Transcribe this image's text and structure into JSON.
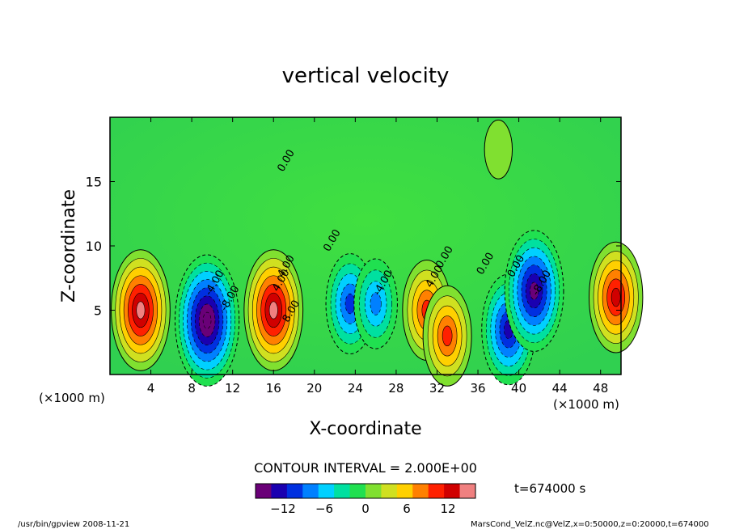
{
  "chart_data": {
    "type": "heatmap",
    "title": "vertical velocity",
    "xlabel": "X-coordinate",
    "ylabel": "Z-coordinate",
    "x_unit": "(×1000 m)",
    "y_unit": "(×1000 m)",
    "xlim": [
      0,
      50
    ],
    "ylim": [
      0,
      20
    ],
    "x_ticks": [
      4,
      8,
      12,
      16,
      20,
      24,
      28,
      32,
      36,
      40,
      44,
      48
    ],
    "y_ticks": [
      5,
      10,
      15
    ],
    "contour_interval_text": "CONTOUR INTERVAL = 2.000E+00",
    "time_text": "t=674000 s",
    "colorbar": {
      "range": [
        -16,
        16
      ],
      "ticks": [
        -12,
        -6,
        0,
        6,
        12
      ],
      "colors": [
        "#6a0078",
        "#1a00b0",
        "#0030e0",
        "#0080ff",
        "#00d0ff",
        "#00e0a0",
        "#20e050",
        "#80e030",
        "#d0e020",
        "#ffd000",
        "#ff8000",
        "#ff2000",
        "#d00000",
        "#f08080"
      ]
    },
    "contour_labels": [
      "0.00",
      "0.00",
      "4.00",
      "-4.00",
      "-8.00",
      "4.00",
      "8.00",
      "0.00",
      "-4.00",
      "4.00",
      "0.00",
      "0.00",
      "-8.00"
    ],
    "cells": [
      {
        "x": 3,
        "z": 5,
        "value": 14
      },
      {
        "x": 9.5,
        "z": 4.2,
        "value": -16
      },
      {
        "x": 16,
        "z": 5,
        "value": 14
      },
      {
        "x": 23.5,
        "z": 5.5,
        "value": -10
      },
      {
        "x": 26,
        "z": 5.5,
        "value": -8
      },
      {
        "x": 31,
        "z": 5,
        "value": 10
      },
      {
        "x": 33,
        "z": 3,
        "value": 10
      },
      {
        "x": 39,
        "z": 3.5,
        "value": -12
      },
      {
        "x": 41.5,
        "z": 6.5,
        "value": -14
      },
      {
        "x": 49.5,
        "z": 6,
        "value": 12
      },
      {
        "x": 38,
        "z": 17.5,
        "value": 2
      }
    ]
  },
  "footer": {
    "left": "/usr/bin/gpview  2008-11-21",
    "right": "MarsCond_VelZ.nc@VelZ,x=0:50000,z=0:20000,t=674000"
  }
}
